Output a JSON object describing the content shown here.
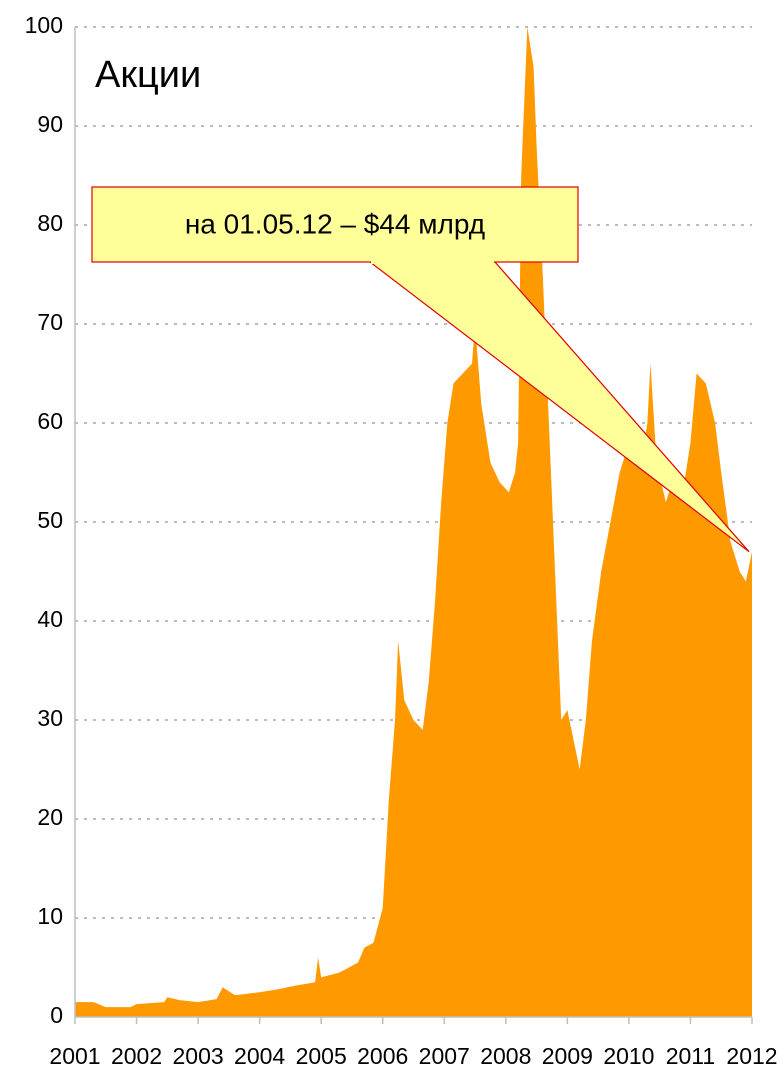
{
  "chart_data": {
    "type": "area",
    "title": "Акции",
    "annotation": "на 01.05.12 – $44 млрд",
    "color": "#ff9900",
    "x": [
      2001.0,
      2001.3,
      2001.5,
      2001.9,
      2002.0,
      2002.45,
      2002.5,
      2002.7,
      2003.0,
      2003.3,
      2003.4,
      2003.6,
      2004.0,
      2004.3,
      2004.6,
      2004.9,
      2004.95,
      2005.0,
      2005.3,
      2005.6,
      2005.7,
      2005.85,
      2006.0,
      2006.1,
      2006.2,
      2006.25,
      2006.35,
      2006.5,
      2006.65,
      2006.75,
      2006.85,
      2006.95,
      2007.05,
      2007.15,
      2007.3,
      2007.45,
      2007.5,
      2007.6,
      2007.75,
      2007.9,
      2008.05,
      2008.15,
      2008.2,
      2008.25,
      2008.35,
      2008.45,
      2008.5,
      2008.6,
      2008.7,
      2008.8,
      2008.9,
      2009.0,
      2009.1,
      2009.2,
      2009.3,
      2009.4,
      2009.55,
      2009.7,
      2009.85,
      2010.0,
      2010.1,
      2010.2,
      2010.3,
      2010.35,
      2010.45,
      2010.6,
      2010.75,
      2010.9,
      2011.0,
      2011.1,
      2011.25,
      2011.4,
      2011.5,
      2011.65,
      2011.8,
      2011.9,
      2012.0
    ],
    "values": [
      1.5,
      1.5,
      1.0,
      1.0,
      1.3,
      1.5,
      2.0,
      1.7,
      1.5,
      1.8,
      3.0,
      2.2,
      2.5,
      2.8,
      3.2,
      3.5,
      6.0,
      4.0,
      4.5,
      5.5,
      7.0,
      7.5,
      11,
      22,
      30,
      38,
      32,
      30,
      29,
      34,
      42,
      52,
      60,
      64,
      65,
      66,
      70,
      62,
      56,
      54,
      53,
      55,
      58,
      85,
      100,
      96,
      88,
      75,
      60,
      45,
      30,
      31,
      28,
      25,
      30,
      38,
      45,
      50,
      55,
      58,
      60,
      56,
      60,
      66,
      56,
      52,
      55,
      54,
      58,
      65,
      64,
      60,
      55,
      48,
      45,
      44,
      47
    ],
    "xlim": [
      2001,
      2012
    ],
    "xticks": [
      2001,
      2002,
      2003,
      2004,
      2005,
      2006,
      2007,
      2008,
      2009,
      2010,
      2011,
      2012
    ],
    "ylim": [
      0,
      100
    ],
    "yticks": [
      0,
      10,
      20,
      30,
      40,
      50,
      60,
      70,
      80,
      90,
      100
    ],
    "grid": true
  }
}
